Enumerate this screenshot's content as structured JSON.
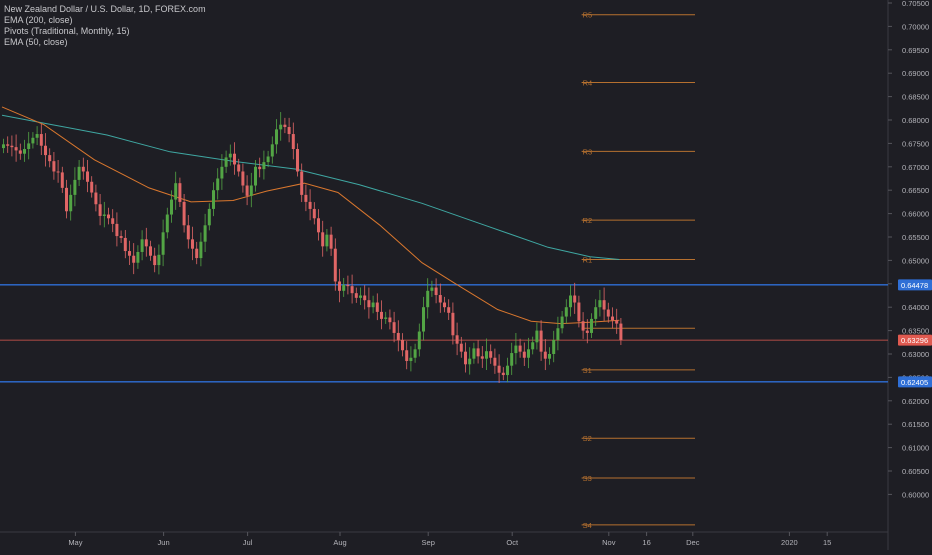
{
  "legend": {
    "symbol_line": "New Zealand Dollar / U.S. Dollar, 1D, FOREX.com",
    "indicator_1": "EMA (200, close)",
    "indicator_2": "Pivots (Traditional, Monthly, 15)",
    "indicator_3": "EMA (50, close)"
  },
  "colors": {
    "background": "#1e1e24",
    "up": "#53a545",
    "down": "#e06666",
    "ema200": "#3fa7a2",
    "ema50": "#d9772e",
    "pivot": "#b5702f",
    "support_resistance": "#2f6fd6",
    "price_line": "#e05a50"
  },
  "chart_data": {
    "type": "candlestick",
    "symbol": "NZDUSD",
    "timeframe": "1D",
    "ylim": [
      0.595,
      0.705
    ],
    "y_ticks": [
      "0.70500",
      "0.70000",
      "0.69500",
      "0.69000",
      "0.68500",
      "0.68000",
      "0.67500",
      "0.67000",
      "0.66500",
      "0.66000",
      "0.65500",
      "0.65000",
      "0.64500",
      "0.64000",
      "0.63500",
      "0.63000",
      "0.62500",
      "0.62000",
      "0.61500",
      "0.61000",
      "0.60500",
      "0.60000"
    ],
    "x_ticks": [
      {
        "label": "May",
        "index": 17
      },
      {
        "label": "Jun",
        "index": 38
      },
      {
        "label": "Jul",
        "index": 58
      },
      {
        "label": "Aug",
        "index": 80
      },
      {
        "label": "Sep",
        "index": 101
      },
      {
        "label": "Oct",
        "index": 121
      },
      {
        "label": "Nov",
        "index": 144
      },
      {
        "label": "16",
        "index": 153
      },
      {
        "label": "Dec",
        "index": 164
      },
      {
        "label": "2020",
        "index": 187
      },
      {
        "label": "15",
        "index": 196
      }
    ],
    "horizontal_levels": [
      {
        "label": "0.64478",
        "value": 0.64478,
        "kind": "resistance"
      },
      {
        "label": "0.62405",
        "value": 0.62405,
        "kind": "support"
      }
    ],
    "last_price": {
      "label": "0.63296",
      "value": 0.63296
    },
    "pivots": [
      {
        "label": "R5",
        "value": 0.7025
      },
      {
        "label": "R4",
        "value": 0.688
      },
      {
        "label": "R3",
        "value": 0.6733
      },
      {
        "label": "R2",
        "value": 0.6586
      },
      {
        "label": "R1",
        "value": 0.6502
      },
      {
        "label": "",
        "value": 0.6355
      },
      {
        "label": "S1",
        "value": 0.6266
      },
      {
        "label": "S2",
        "value": 0.612
      },
      {
        "label": "S3",
        "value": 0.6035
      },
      {
        "label": "S4",
        "value": 0.5935
      }
    ],
    "pivot_range": [
      138,
      165
    ],
    "ema200": [
      [
        0,
        0.681
      ],
      [
        12,
        0.679
      ],
      [
        25,
        0.6768
      ],
      [
        40,
        0.6732
      ],
      [
        55,
        0.6712
      ],
      [
        70,
        0.6695
      ],
      [
        85,
        0.6662
      ],
      [
        100,
        0.6622
      ],
      [
        115,
        0.6575
      ],
      [
        130,
        0.6528
      ],
      [
        140,
        0.6508
      ],
      [
        147,
        0.6502
      ]
    ],
    "ema50": [
      [
        0,
        0.6828
      ],
      [
        10,
        0.679
      ],
      [
        22,
        0.6715
      ],
      [
        35,
        0.6655
      ],
      [
        45,
        0.6625
      ],
      [
        55,
        0.6628
      ],
      [
        63,
        0.6648
      ],
      [
        72,
        0.6665
      ],
      [
        80,
        0.6645
      ],
      [
        90,
        0.6575
      ],
      [
        100,
        0.6495
      ],
      [
        108,
        0.645
      ],
      [
        118,
        0.6395
      ],
      [
        126,
        0.637
      ],
      [
        133,
        0.6365
      ],
      [
        140,
        0.6368
      ],
      [
        147,
        0.6372
      ]
    ],
    "closes": [
      0.6748,
      0.6745,
      0.6742,
      0.6735,
      0.6728,
      0.6738,
      0.675,
      0.6762,
      0.677,
      0.6745,
      0.6725,
      0.6712,
      0.669,
      0.6688,
      0.6655,
      0.6605,
      0.664,
      0.6672,
      0.67,
      0.669,
      0.6668,
      0.6645,
      0.662,
      0.6595,
      0.6598,
      0.659,
      0.6578,
      0.6552,
      0.6548,
      0.652,
      0.651,
      0.6495,
      0.6518,
      0.6545,
      0.653,
      0.651,
      0.649,
      0.6512,
      0.656,
      0.6598,
      0.663,
      0.6665,
      0.6625,
      0.6575,
      0.6545,
      0.6525,
      0.6505,
      0.654,
      0.6575,
      0.661,
      0.665,
      0.6675,
      0.67,
      0.672,
      0.6728,
      0.6705,
      0.669,
      0.666,
      0.6638,
      0.666,
      0.67,
      0.6695,
      0.671,
      0.6722,
      0.6748,
      0.678,
      0.679,
      0.6785,
      0.677,
      0.6738,
      0.669,
      0.664,
      0.6625,
      0.661,
      0.659,
      0.656,
      0.653,
      0.6555,
      0.6525,
      0.6455,
      0.6435,
      0.6448,
      0.6445,
      0.643,
      0.642,
      0.6425,
      0.6415,
      0.64,
      0.641,
      0.639,
      0.6375,
      0.6378,
      0.6368,
      0.6345,
      0.633,
      0.6308,
      0.6285,
      0.6292,
      0.631,
      0.6348,
      0.64,
      0.6435,
      0.6442,
      0.6426,
      0.641,
      0.64,
      0.6388,
      0.634,
      0.6322,
      0.6305,
      0.6278,
      0.629,
      0.6312,
      0.6295,
      0.629,
      0.6306,
      0.6292,
      0.6275,
      0.626,
      0.6255,
      0.6275,
      0.6302,
      0.6318,
      0.6305,
      0.6292,
      0.631,
      0.6325,
      0.635,
      0.6305,
      0.629,
      0.63,
      0.633,
      0.6355,
      0.638,
      0.64,
      0.6425,
      0.641,
      0.637,
      0.635,
      0.6345,
      0.6375,
      0.64,
      0.6415,
      0.6395,
      0.638,
      0.6372,
      0.6365,
      0.633
    ]
  }
}
